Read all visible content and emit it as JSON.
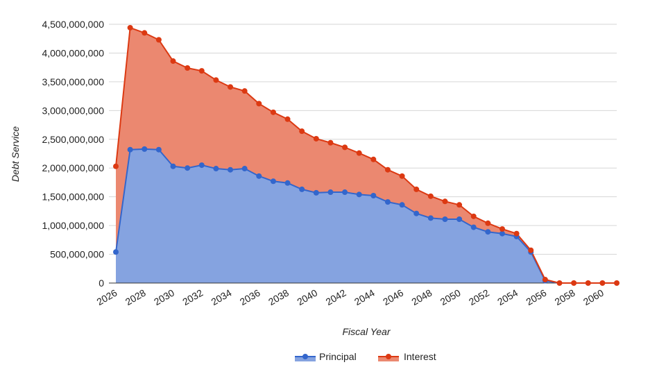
{
  "chart_data": {
    "type": "area",
    "stacked": true,
    "title": "",
    "xlabel": "Fiscal Year",
    "ylabel": "Debt Service",
    "ylim": [
      0,
      4500000000
    ],
    "yticks": [
      0,
      500000000,
      1000000000,
      1500000000,
      2000000000,
      2500000000,
      3000000000,
      3500000000,
      4000000000,
      4500000000
    ],
    "ytick_labels": [
      "0",
      "500,000,000",
      "1,000,000,000",
      "1,500,000,000",
      "2,000,000,000",
      "2,500,000,000",
      "3,000,000,000",
      "3,500,000,000",
      "4,000,000,000",
      "4,500,000,000"
    ],
    "xtick_labels": [
      "2026",
      "2028",
      "2030",
      "2032",
      "2034",
      "2036",
      "2038",
      "2040",
      "2042",
      "2044",
      "2046",
      "2048",
      "2050",
      "2052",
      "2054",
      "2056",
      "2058",
      "2060"
    ],
    "x": [
      2026,
      2027,
      2028,
      2029,
      2030,
      2031,
      2032,
      2033,
      2034,
      2035,
      2036,
      2037,
      2038,
      2039,
      2040,
      2041,
      2042,
      2043,
      2044,
      2045,
      2046,
      2047,
      2048,
      2049,
      2050,
      2051,
      2052,
      2053,
      2054,
      2055,
      2056,
      2057,
      2058,
      2059,
      2060,
      2061
    ],
    "grid": true,
    "legend": "bottom",
    "series": [
      {
        "name": "Principal",
        "color": "#3366cc",
        "fill": "#85a3e0",
        "values": [
          540000000,
          2320000000,
          2330000000,
          2320000000,
          2030000000,
          2000000000,
          2050000000,
          1990000000,
          1970000000,
          1990000000,
          1860000000,
          1770000000,
          1740000000,
          1630000000,
          1570000000,
          1580000000,
          1580000000,
          1540000000,
          1520000000,
          1410000000,
          1360000000,
          1210000000,
          1130000000,
          1110000000,
          1110000000,
          970000000,
          890000000,
          860000000,
          810000000,
          540000000,
          40000000,
          0,
          0,
          0,
          0,
          0
        ]
      },
      {
        "name": "Interest",
        "color": "#dc3912",
        "fill": "#eb8870",
        "values": [
          1490000000,
          2120000000,
          2020000000,
          1910000000,
          1830000000,
          1740000000,
          1640000000,
          1540000000,
          1440000000,
          1350000000,
          1260000000,
          1200000000,
          1110000000,
          1010000000,
          940000000,
          860000000,
          780000000,
          720000000,
          630000000,
          560000000,
          500000000,
          420000000,
          380000000,
          310000000,
          250000000,
          190000000,
          150000000,
          80000000,
          50000000,
          30000000,
          20000000,
          0,
          0,
          0,
          0,
          0
        ]
      }
    ]
  }
}
